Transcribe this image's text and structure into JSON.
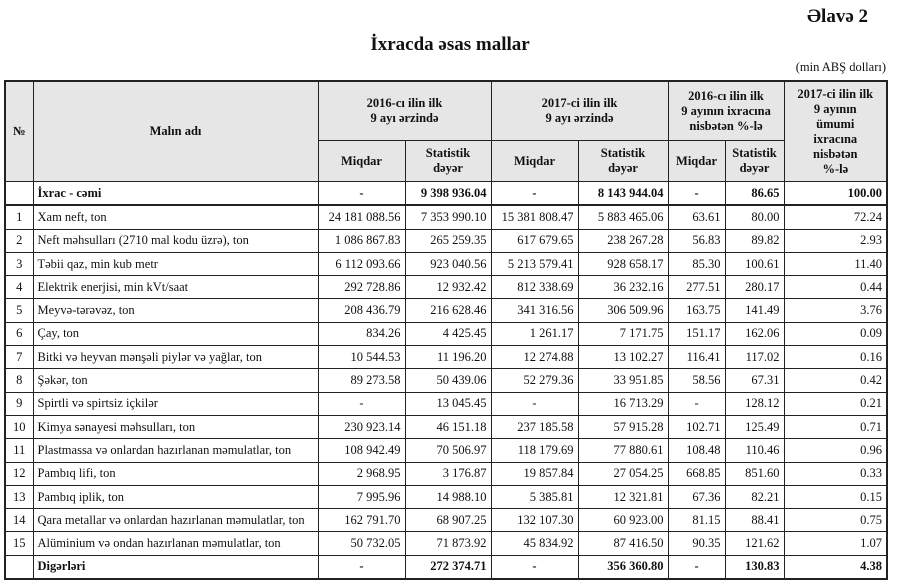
{
  "appendix": "Əlavə 2",
  "title": "İxracda əsas mallar",
  "unit": "(min ABŞ dolları)",
  "header": {
    "no": "№",
    "name": "Malın adı",
    "period2016": "2016-cı ilin ilk\n9 ayı ərzində",
    "period2017": "2017-ci ilin ilk\n9 ayı ərzində",
    "ratio2016": "2016-cı ilin ilk\n9 ayının ixracına\nnisbətən %-lə",
    "share2017": "2017-ci ilin ilk\n9 ayının\nümumi\nixracına\nnisbətən\n%-lə",
    "quantity": "Miqdar",
    "value": "Statistik\ndəyər"
  },
  "total": {
    "no": "",
    "name": "İxrac - cəmi",
    "q16": "-",
    "v16": "9 398 936.04",
    "q17": "-",
    "v17": "8 143 944.04",
    "qp": "-",
    "vp": "86.65",
    "share": "100.00"
  },
  "rows": [
    {
      "no": "1",
      "name": "Xam neft, ton",
      "q16": "24 181 088.56",
      "v16": "7 353 990.10",
      "q17": "15 381 808.47",
      "v17": "5 883 465.06",
      "qp": "63.61",
      "vp": "80.00",
      "share": "72.24"
    },
    {
      "no": "2",
      "name": "Neft məhsulları (2710 mal kodu üzrə), ton",
      "q16": "1 086 867.83",
      "v16": "265 259.35",
      "q17": "617 679.65",
      "v17": "238 267.28",
      "qp": "56.83",
      "vp": "89.82",
      "share": "2.93"
    },
    {
      "no": "3",
      "name": "Təbii qaz, min kub metr",
      "q16": "6 112 093.66",
      "v16": "923 040.56",
      "q17": "5 213 579.41",
      "v17": "928 658.17",
      "qp": "85.30",
      "vp": "100.61",
      "share": "11.40"
    },
    {
      "no": "4",
      "name": "Elektrik enerjisi, min kVt/saat",
      "q16": "292 728.86",
      "v16": "12 932.42",
      "q17": "812 338.69",
      "v17": "36 232.16",
      "qp": "277.51",
      "vp": "280.17",
      "share": "0.44"
    },
    {
      "no": "5",
      "name": "Meyvə-tərəvəz, ton",
      "q16": "208 436.79",
      "v16": "216 628.46",
      "q17": "341 316.56",
      "v17": "306 509.96",
      "qp": "163.75",
      "vp": "141.49",
      "share": "3.76"
    },
    {
      "no": "6",
      "name": "Çay, ton",
      "q16": "834.26",
      "v16": "4 425.45",
      "q17": "1 261.17",
      "v17": "7 171.75",
      "qp": "151.17",
      "vp": "162.06",
      "share": "0.09"
    },
    {
      "no": "7",
      "name": "Bitki və heyvan mənşəli piylər və yağlar, ton",
      "q16": "10 544.53",
      "v16": "11 196.20",
      "q17": "12 274.88",
      "v17": "13 102.27",
      "qp": "116.41",
      "vp": "117.02",
      "share": "0.16"
    },
    {
      "no": "8",
      "name": "Şəkər, ton",
      "q16": "89 273.58",
      "v16": "50 439.06",
      "q17": "52 279.36",
      "v17": "33 951.85",
      "qp": "58.56",
      "vp": "67.31",
      "share": "0.42"
    },
    {
      "no": "9",
      "name": "Spirtli və spirtsiz içkilər",
      "q16": "-",
      "v16": "13 045.45",
      "q17": "-",
      "v17": "16 713.29",
      "qp": "-",
      "vp": "128.12",
      "share": "0.21"
    },
    {
      "no": "10",
      "name": "Kimya sənayesi məhsulları, ton",
      "q16": "230 923.14",
      "v16": "46 151.18",
      "q17": "237 185.58",
      "v17": "57 915.28",
      "qp": "102.71",
      "vp": "125.49",
      "share": "0.71"
    },
    {
      "no": "11",
      "name": "Plastmassa və onlardan hazırlanan məmulatlar, ton",
      "q16": "108 942.49",
      "v16": "70 506.97",
      "q17": "118 179.69",
      "v17": "77 880.61",
      "qp": "108.48",
      "vp": "110.46",
      "share": "0.96"
    },
    {
      "no": "12",
      "name": "Pambıq lifi, ton",
      "q16": "2 968.95",
      "v16": "3 176.87",
      "q17": "19 857.84",
      "v17": "27 054.25",
      "qp": "668.85",
      "vp": "851.60",
      "share": "0.33"
    },
    {
      "no": "13",
      "name": "Pambıq iplik, ton",
      "q16": "7 995.96",
      "v16": "14 988.10",
      "q17": "5 385.81",
      "v17": "12 321.81",
      "qp": "67.36",
      "vp": "82.21",
      "share": "0.15"
    },
    {
      "no": "14",
      "name": "Qara metallar və onlardan hazırlanan məmulatlar, ton",
      "q16": "162 791.70",
      "v16": "68 907.25",
      "q17": "132 107.30",
      "v17": "60 923.00",
      "qp": "81.15",
      "vp": "88.41",
      "share": "0.75"
    },
    {
      "no": "15",
      "name": "Alüminium və ondan hazırlanan məmulatlar, ton",
      "q16": "50 732.05",
      "v16": "71 873.92",
      "q17": "45 834.92",
      "v17": "87 416.50",
      "qp": "90.35",
      "vp": "121.62",
      "share": "1.07"
    }
  ],
  "others": {
    "no": "",
    "name": "Digərləri",
    "q16": "-",
    "v16": "272 374.71",
    "q17": "-",
    "v17": "356 360.80",
    "qp": "-",
    "vp": "130.83",
    "share": "4.38"
  }
}
